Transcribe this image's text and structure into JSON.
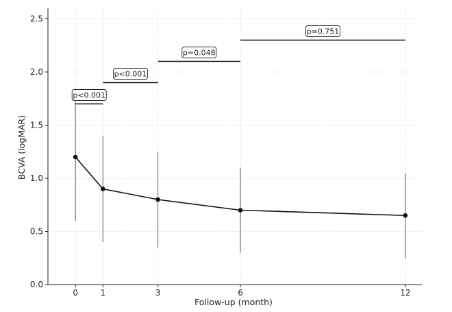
{
  "chart_data": {
    "type": "line",
    "title": "",
    "xlabel": "Follow-up (month)",
    "ylabel": "BCVA (logMAR)",
    "xlim": [
      -1,
      12.6
    ],
    "ylim": [
      0,
      2.6
    ],
    "grid": true,
    "x_ticks": [
      0,
      1,
      3,
      6,
      12
    ],
    "y_ticks": [
      0.0,
      0.5,
      1.0,
      1.5,
      2.0,
      2.5
    ],
    "y_tick_labels": [
      "0.0",
      "0.5",
      "1.0",
      "1.5",
      "2.0",
      "2.5"
    ],
    "series": [
      {
        "x": [
          0,
          1,
          3,
          6,
          12
        ],
        "values": [
          1.2,
          0.9,
          0.8,
          0.7,
          0.65
        ],
        "error_low": [
          0.6,
          0.4,
          0.35,
          0.3,
          0.25
        ],
        "error_high": [
          1.72,
          1.4,
          1.25,
          1.1,
          1.05
        ],
        "color": "#111111"
      }
    ],
    "annotations": [
      {
        "x_start": 0,
        "x_end": 1,
        "y": 1.7,
        "text": "p<0.001"
      },
      {
        "x_start": 1,
        "x_end": 3,
        "y": 1.9,
        "text": "p<0.001"
      },
      {
        "x_start": 3,
        "x_end": 6,
        "y": 2.1,
        "text": "p=0.048"
      },
      {
        "x_start": 6,
        "x_end": 12,
        "y": 2.3,
        "text": "p=0.751"
      }
    ]
  }
}
